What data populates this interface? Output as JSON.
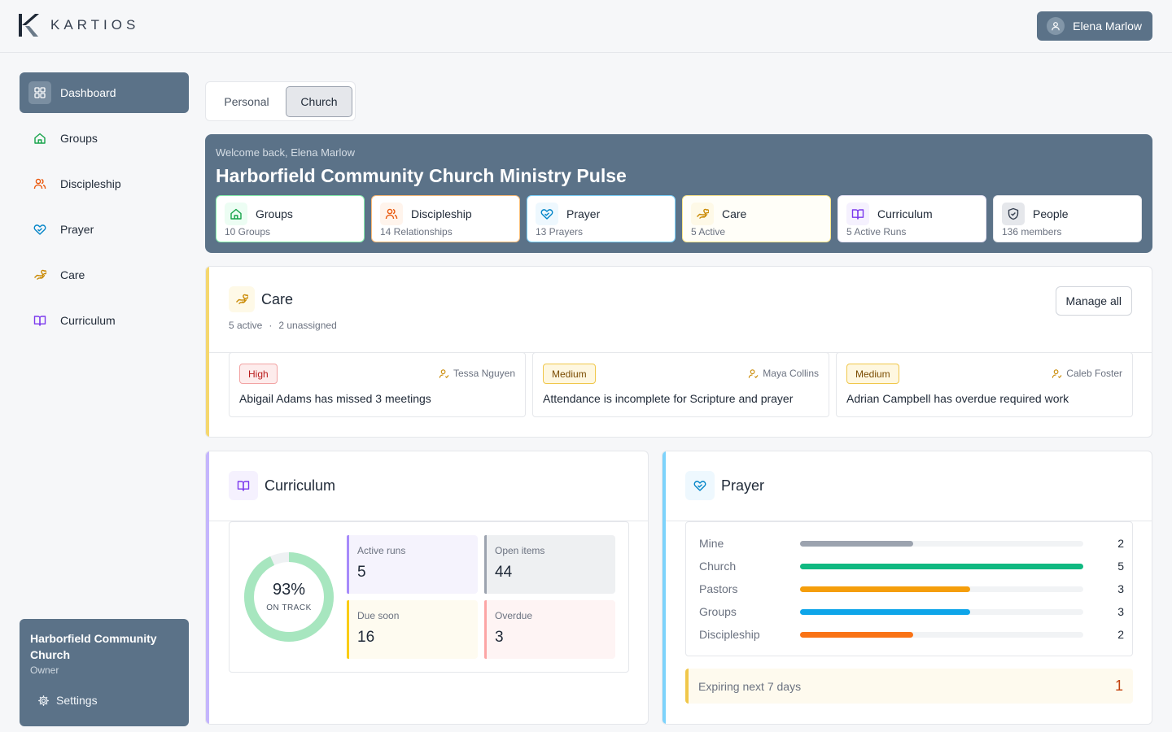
{
  "header": {
    "brand": "KARTIOS",
    "user_name": "Elena Marlow"
  },
  "sidebar": {
    "items": [
      {
        "label": "Dashboard",
        "icon": "dashboard-icon",
        "active": true
      },
      {
        "label": "Groups",
        "icon": "home-icon"
      },
      {
        "label": "Discipleship",
        "icon": "people-icon"
      },
      {
        "label": "Prayer",
        "icon": "heart-hands-icon"
      },
      {
        "label": "Care",
        "icon": "care-hand-icon"
      },
      {
        "label": "Curriculum",
        "icon": "book-icon"
      }
    ],
    "church": {
      "name": "Harborfield Community Church",
      "role": "Owner",
      "settings_label": "Settings"
    }
  },
  "toggle": {
    "personal": "Personal",
    "church": "Church",
    "selected": "Church"
  },
  "banner": {
    "welcome": "Welcome back, Elena Marlow",
    "title": "Harborfield Community Church Ministry Pulse",
    "stats": [
      {
        "label": "Groups",
        "sub": "10 Groups",
        "icon": "home-icon",
        "color": "#16a34a"
      },
      {
        "label": "Discipleship",
        "sub": "14 Relationships",
        "icon": "people-icon",
        "color": "#ea580c"
      },
      {
        "label": "Prayer",
        "sub": "13 Prayers",
        "icon": "heart-hands-icon",
        "color": "#0284c7"
      },
      {
        "label": "Care",
        "sub": "5 Active",
        "icon": "care-hand-icon",
        "color": "#ca8a04"
      },
      {
        "label": "Curriculum",
        "sub": "5 Active Runs",
        "icon": "book-icon",
        "color": "#7c3aed"
      },
      {
        "label": "People",
        "sub": "136 members",
        "icon": "shield-icon",
        "color": "#4b5563"
      }
    ]
  },
  "care": {
    "title": "Care",
    "active": "5 active",
    "separator": "·",
    "unassigned": "2 unassigned",
    "manage_label": "Manage all",
    "items": [
      {
        "priority": "High",
        "assignee": "Tessa Nguyen",
        "text": "Abigail Adams has missed 3 meetings"
      },
      {
        "priority": "Medium",
        "assignee": "Maya Collins",
        "text": "Attendance is incomplete for Scripture and prayer"
      },
      {
        "priority": "Medium",
        "assignee": "Caleb Foster",
        "text": "Adrian Campbell has overdue required work"
      }
    ]
  },
  "curriculum": {
    "title": "Curriculum",
    "on_track_percent": "93%",
    "on_track_fraction": 0.93,
    "on_track_label": "ON TRACK",
    "stats": [
      {
        "label": "Active runs",
        "value": "5",
        "accent": "#a78bfa",
        "bg": "#f5f3fd"
      },
      {
        "label": "Open items",
        "value": "44",
        "accent": "#9ca3af",
        "bg": "#eef0f2"
      },
      {
        "label": "Due soon",
        "value": "16",
        "accent": "#facc15",
        "bg": "#fefbf0"
      },
      {
        "label": "Overdue",
        "value": "3",
        "accent": "#fca5a5",
        "bg": "#fef4f4"
      }
    ]
  },
  "prayer": {
    "title": "Prayer",
    "max": 5,
    "rows": [
      {
        "label": "Mine",
        "value": 2,
        "color": "#9ca3af"
      },
      {
        "label": "Church",
        "value": 5,
        "color": "#10b981"
      },
      {
        "label": "Pastors",
        "value": 3,
        "color": "#f59e0b"
      },
      {
        "label": "Groups",
        "value": 3,
        "color": "#0ea5e9"
      },
      {
        "label": "Discipleship",
        "value": 2,
        "color": "#f97316"
      }
    ],
    "expiring_label": "Expiring next 7 days",
    "expiring_value": "1"
  }
}
